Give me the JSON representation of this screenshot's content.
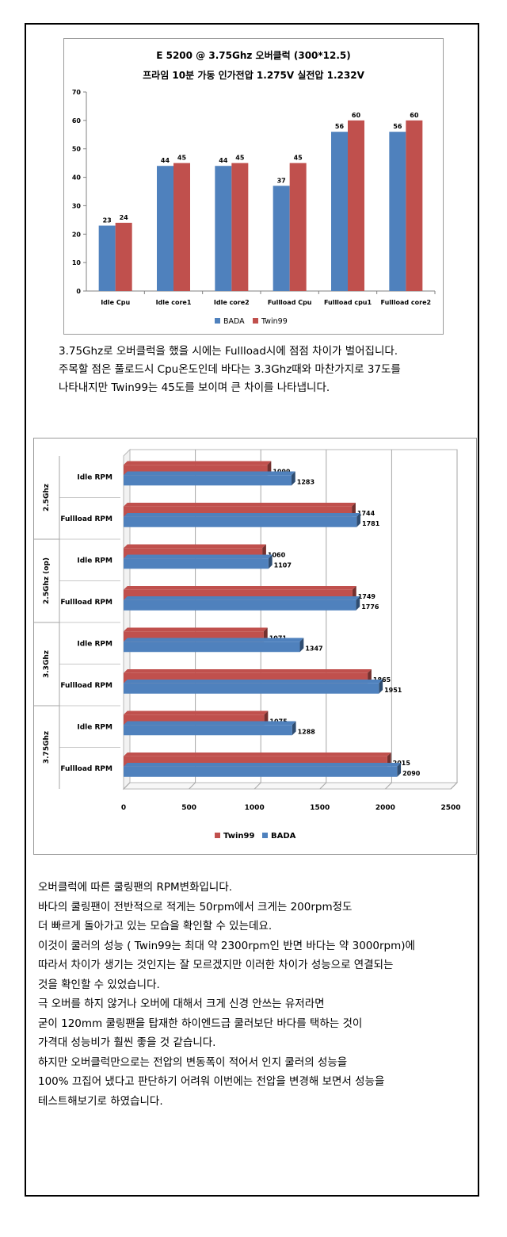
{
  "charts": {
    "chart1": {
      "title_line1": "E 5200  @ 3.75Ghz 오버클럭 (300*12.5)",
      "title_line2": "프라임 10분 가동 인가전압 1.275V 실전압 1.232V"
    },
    "chart2": {}
  },
  "paragraph1": [
    "3.75Ghz로 오버클럭을 했을 시에는 Fullload시에 점점 차이가 벌어집니다.",
    "주목할 점은 풀로드시 Cpu온도인데 바다는 3.3Ghz때와 마찬가지로 37도를",
    "나타내지만 Twin99는 45도를 보이며 큰 차이를 나타냅니다."
  ],
  "paragraph2": [
    "오버클럭에 따른 쿨링팬의 RPM변화입니다.",
    "바다의 쿨링팬이 전반적으로 적게는 50rpm에서 크게는 200rpm정도",
    "더 빠르게 돌아가고 있는 모습을 확인할 수 있는데요.",
    "이것이 쿨러의 성능 ( Twin99는 최대 약 2300rpm인 반면 바다는 약 3000rpm)에",
    "따라서 차이가 생기는 것인지는 잘 모르겠지만 이러한 차이가 성능으로  연결되는",
    "것을 확인할 수 있었습니다.",
    "극 오버를 하지 않거나 오버에 대해서 크게 신경 안쓰는 유저라면",
    "굳이 120mm 쿨링팬을 탑재한 하이엔드급 쿨러보단 바다를 택하는 것이",
    "가격대 성능비가 훨씬 좋을 것 같습니다.",
    "하지만 오버클럭만으로는 전압의 변동폭이 적어서 인지 쿨러의 성능을",
    "100% 끄집어 냈다고 판단하기 어려워 이번에는 전압을 변경해 보면서 성능을",
    "테스트해보기로 하였습니다."
  ],
  "chart_data": [
    {
      "type": "bar",
      "title": "E 5200  @ 3.75Ghz 오버클럭 (300*12.5)\n프라임 10분 가동 인가전압 1.275V 실전압 1.232V",
      "categories": [
        "Idle Cpu",
        "Idle core1",
        "Idle core2",
        "Fullload Cpu",
        "Fullload cpu1",
        "Fullload core2"
      ],
      "series": [
        {
          "name": "BADA",
          "color": "#4f81bd",
          "values": [
            23,
            44,
            44,
            37,
            56,
            56
          ]
        },
        {
          "name": "Twin99",
          "color": "#c0504d",
          "values": [
            24,
            45,
            45,
            45,
            60,
            60
          ]
        }
      ],
      "ylim": [
        0,
        70
      ],
      "yticks": [
        0,
        10,
        20,
        30,
        40,
        50,
        60,
        70
      ],
      "legend": "bottom",
      "grid": false
    },
    {
      "type": "bar",
      "orientation": "horizontal",
      "groups": [
        {
          "label": "2.5Ghz",
          "rows": [
            {
              "label": "Idle RPM",
              "Twin99": 1099,
              "BADA": 1283
            },
            {
              "label": "Fullload RPM",
              "Twin99": 1744,
              "BADA": 1781
            }
          ]
        },
        {
          "label": "2.5Ghz (op)",
          "rows": [
            {
              "label": "Idle RPM",
              "Twin99": 1060,
              "BADA": 1107
            },
            {
              "label": "Fullload RPM",
              "Twin99": 1749,
              "BADA": 1776
            }
          ]
        },
        {
          "label": "3.3Ghz",
          "rows": [
            {
              "label": "Idle RPM",
              "Twin99": 1071,
              "BADA": 1347
            },
            {
              "label": "Fullload RPM",
              "Twin99": 1865,
              "BADA": 1951
            }
          ]
        },
        {
          "label": "3.75Ghz",
          "rows": [
            {
              "label": "Idle RPM",
              "Twin99": 1075,
              "BADA": 1288
            },
            {
              "label": "Fullload RPM",
              "Twin99": 2015,
              "BADA": 2090
            }
          ]
        }
      ],
      "series": [
        {
          "name": "Twin99",
          "color": "#c0504d"
        },
        {
          "name": "BADA",
          "color": "#4f81bd"
        }
      ],
      "xlim": [
        0,
        2500
      ],
      "xticks": [
        0,
        500,
        1000,
        1500,
        2000,
        2500
      ],
      "legend": "bottom",
      "grid": true,
      "style": "3d"
    }
  ]
}
